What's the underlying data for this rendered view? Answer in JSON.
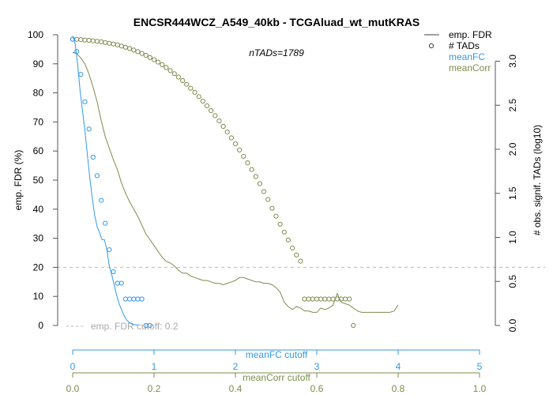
{
  "chart_data": {
    "type": "line",
    "title": "ENCSR444WCZ_A549_40kb - TCGAluad_wt_mutKRAS",
    "annotation": "nTADs=1789",
    "ylabel_left": "emp. FDR (%)",
    "ylabel_right": "# obs. signif. TADs (log10)",
    "xlabel_fc": "meanFC cutoff",
    "xlabel_corr": "meanCorr cutoff",
    "ylim_left": [
      0,
      100
    ],
    "ylim_right": [
      0,
      3.3
    ],
    "yticks_left": [
      0,
      10,
      20,
      30,
      40,
      50,
      60,
      70,
      80,
      90,
      100
    ],
    "yticks_right": [
      0.0,
      0.5,
      1.0,
      1.5,
      2.0,
      2.5,
      3.0
    ],
    "xticks_fc": [
      0,
      1,
      2,
      3,
      4,
      5
    ],
    "xticks_corr": [
      0.0,
      0.2,
      0.4,
      0.6,
      0.8,
      1.0
    ],
    "cutoff": {
      "value": 20,
      "label": "emp. FDR cutoff: 0.2"
    },
    "legend": {
      "placement": "top-right",
      "items": [
        {
          "label": "emp. FDR",
          "symbol": "line",
          "color": "#404040"
        },
        {
          "label": "# TADs",
          "symbol": "circle",
          "color": "#404040"
        },
        {
          "label": "meanFC",
          "symbol": "text",
          "color": "#3399e6"
        },
        {
          "label": "meanCorr",
          "symbol": "text",
          "color": "#7e8c4e"
        }
      ]
    },
    "colors": {
      "fc": "#3399e6",
      "corr": "#7e8c4e",
      "cutoff": "#bbbbbb",
      "axis": "#555555"
    },
    "series": [
      {
        "name": "meanFC",
        "axis": "fc",
        "fdr_line": [
          [
            0.0,
            99.6
          ],
          [
            0.03,
            97
          ],
          [
            0.06,
            90
          ],
          [
            0.09,
            81
          ],
          [
            0.12,
            74
          ],
          [
            0.15,
            67
          ],
          [
            0.18,
            59
          ],
          [
            0.21,
            51
          ],
          [
            0.24,
            44
          ],
          [
            0.27,
            38
          ],
          [
            0.3,
            34
          ],
          [
            0.33,
            32
          ],
          [
            0.36,
            29.5
          ],
          [
            0.39,
            29.5
          ],
          [
            0.42,
            26
          ],
          [
            0.45,
            20.5
          ],
          [
            0.48,
            17.5
          ],
          [
            0.51,
            14
          ],
          [
            0.54,
            10.5
          ],
          [
            0.57,
            7.5
          ],
          [
            0.6,
            5.5
          ],
          [
            0.63,
            3.5
          ],
          [
            0.66,
            2
          ],
          [
            0.69,
            1.2
          ],
          [
            0.72,
            0.6
          ],
          [
            0.75,
            0.3
          ],
          [
            0.78,
            0.2
          ],
          [
            0.81,
            0.2
          ]
        ],
        "tads": [
          [
            0.0,
            3.25
          ],
          [
            0.05,
            3.11
          ],
          [
            0.1,
            2.85
          ],
          [
            0.15,
            2.54
          ],
          [
            0.2,
            2.23
          ],
          [
            0.25,
            1.91
          ],
          [
            0.3,
            1.7
          ],
          [
            0.35,
            1.42
          ],
          [
            0.4,
            1.16
          ],
          [
            0.45,
            0.86
          ],
          [
            0.5,
            0.61
          ],
          [
            0.55,
            0.48
          ],
          [
            0.6,
            0.48
          ],
          [
            0.65,
            0.3
          ],
          [
            0.7,
            0.3
          ],
          [
            0.75,
            0.3
          ],
          [
            0.8,
            0.3
          ],
          [
            0.85,
            0.3
          ],
          [
            0.9,
            0.0
          ],
          [
            0.95,
            0.0
          ]
        ]
      },
      {
        "name": "meanCorr",
        "axis": "corr",
        "fdr_line": [
          [
            0.0,
            94
          ],
          [
            0.01,
            93.5
          ],
          [
            0.02,
            92
          ],
          [
            0.03,
            90
          ],
          [
            0.04,
            86.5
          ],
          [
            0.05,
            82
          ],
          [
            0.06,
            77
          ],
          [
            0.07,
            70.5
          ],
          [
            0.08,
            65
          ],
          [
            0.09,
            61
          ],
          [
            0.1,
            57
          ],
          [
            0.11,
            53.5
          ],
          [
            0.12,
            49
          ],
          [
            0.13,
            45.5
          ],
          [
            0.14,
            42.5
          ],
          [
            0.15,
            40
          ],
          [
            0.16,
            37.5
          ],
          [
            0.17,
            34.5
          ],
          [
            0.18,
            31.5
          ],
          [
            0.19,
            29.5
          ],
          [
            0.2,
            27.5
          ],
          [
            0.21,
            25.5
          ],
          [
            0.22,
            23.5
          ],
          [
            0.23,
            22
          ],
          [
            0.24,
            21.5
          ],
          [
            0.25,
            20.5
          ],
          [
            0.26,
            19
          ],
          [
            0.27,
            18
          ],
          [
            0.28,
            18
          ],
          [
            0.29,
            17
          ],
          [
            0.3,
            16.5
          ],
          [
            0.31,
            16
          ],
          [
            0.32,
            15.5
          ],
          [
            0.33,
            15.5
          ],
          [
            0.34,
            15
          ],
          [
            0.35,
            14.5
          ],
          [
            0.36,
            14.5
          ],
          [
            0.37,
            14
          ],
          [
            0.38,
            14.5
          ],
          [
            0.39,
            15
          ],
          [
            0.4,
            15.5
          ],
          [
            0.41,
            16.5
          ],
          [
            0.42,
            16.5
          ],
          [
            0.43,
            16
          ],
          [
            0.44,
            15.5
          ],
          [
            0.45,
            15
          ],
          [
            0.46,
            15
          ],
          [
            0.47,
            14.5
          ],
          [
            0.48,
            14.5
          ],
          [
            0.49,
            14
          ],
          [
            0.5,
            13
          ],
          [
            0.51,
            11.5
          ],
          [
            0.52,
            8
          ],
          [
            0.53,
            6.5
          ],
          [
            0.54,
            5.5
          ],
          [
            0.55,
            6.5
          ],
          [
            0.56,
            6
          ],
          [
            0.57,
            5
          ],
          [
            0.58,
            5
          ],
          [
            0.59,
            4.5
          ],
          [
            0.6,
            4.5
          ],
          [
            0.61,
            6
          ],
          [
            0.62,
            5.5
          ],
          [
            0.63,
            6
          ],
          [
            0.64,
            7
          ],
          [
            0.65,
            11
          ],
          [
            0.66,
            8
          ],
          [
            0.67,
            7.5
          ],
          [
            0.68,
            7
          ],
          [
            0.69,
            6
          ],
          [
            0.7,
            5
          ],
          [
            0.71,
            4.5
          ],
          [
            0.72,
            4.5
          ],
          [
            0.73,
            4.5
          ],
          [
            0.74,
            4.5
          ],
          [
            0.75,
            4.5
          ],
          [
            0.76,
            4.5
          ],
          [
            0.77,
            4.5
          ],
          [
            0.78,
            4.5
          ],
          [
            0.79,
            5
          ],
          [
            0.8,
            7
          ]
        ],
        "tads": [
          [
            0.0,
            3.25
          ],
          [
            0.01,
            3.248
          ],
          [
            0.02,
            3.245
          ],
          [
            0.03,
            3.24
          ],
          [
            0.04,
            3.237
          ],
          [
            0.05,
            3.232
          ],
          [
            0.06,
            3.226
          ],
          [
            0.07,
            3.22
          ],
          [
            0.08,
            3.212
          ],
          [
            0.09,
            3.203
          ],
          [
            0.1,
            3.195
          ],
          [
            0.11,
            3.185
          ],
          [
            0.12,
            3.172
          ],
          [
            0.13,
            3.158
          ],
          [
            0.14,
            3.143
          ],
          [
            0.15,
            3.126
          ],
          [
            0.16,
            3.108
          ],
          [
            0.17,
            3.088
          ],
          [
            0.18,
            3.066
          ],
          [
            0.19,
            3.042
          ],
          [
            0.2,
            3.017
          ],
          [
            0.21,
            2.99
          ],
          [
            0.22,
            2.96
          ],
          [
            0.23,
            2.928
          ],
          [
            0.24,
            2.894
          ],
          [
            0.25,
            2.858
          ],
          [
            0.26,
            2.82
          ],
          [
            0.27,
            2.78
          ],
          [
            0.28,
            2.738
          ],
          [
            0.29,
            2.693
          ],
          [
            0.3,
            2.647
          ],
          [
            0.31,
            2.598
          ],
          [
            0.32,
            2.547
          ],
          [
            0.33,
            2.494
          ],
          [
            0.34,
            2.439
          ],
          [
            0.35,
            2.382
          ],
          [
            0.36,
            2.322
          ],
          [
            0.37,
            2.26
          ],
          [
            0.38,
            2.196
          ],
          [
            0.39,
            2.13
          ],
          [
            0.4,
            2.062
          ],
          [
            0.41,
            1.992
          ],
          [
            0.42,
            1.92
          ],
          [
            0.43,
            1.846
          ],
          [
            0.44,
            1.77
          ],
          [
            0.45,
            1.69
          ],
          [
            0.46,
            1.61
          ],
          [
            0.47,
            1.52
          ],
          [
            0.48,
            1.43
          ],
          [
            0.49,
            1.33
          ],
          [
            0.5,
            1.24
          ],
          [
            0.51,
            1.15
          ],
          [
            0.52,
            1.06
          ],
          [
            0.53,
            0.97
          ],
          [
            0.54,
            0.88
          ],
          [
            0.55,
            0.8
          ],
          [
            0.56,
            0.73
          ],
          [
            0.57,
            0.3
          ],
          [
            0.58,
            0.3
          ],
          [
            0.59,
            0.3
          ],
          [
            0.6,
            0.3
          ],
          [
            0.61,
            0.3
          ],
          [
            0.62,
            0.3
          ],
          [
            0.63,
            0.3
          ],
          [
            0.64,
            0.3
          ],
          [
            0.65,
            0.3
          ],
          [
            0.66,
            0.3
          ],
          [
            0.67,
            0.3
          ],
          [
            0.68,
            0.3
          ],
          [
            0.69,
            0.0
          ]
        ]
      }
    ]
  }
}
